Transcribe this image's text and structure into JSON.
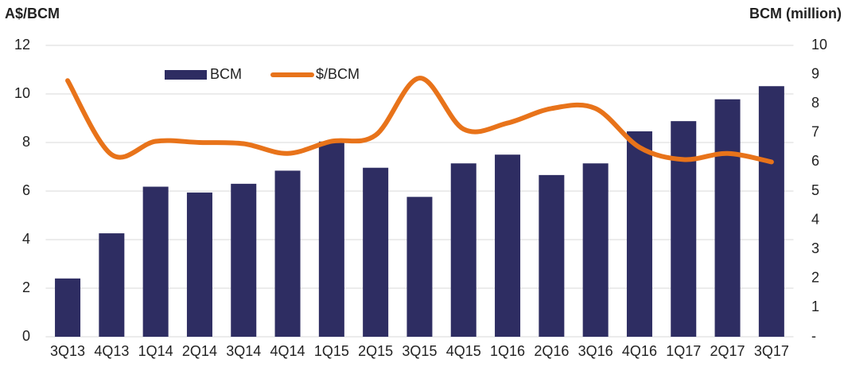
{
  "chart_data": {
    "type": "bar-line",
    "y_label": "A$/BCM",
    "y2_label": "BCM (million)",
    "categories": [
      "3Q13",
      "4Q13",
      "1Q14",
      "2Q14",
      "3Q14",
      "4Q14",
      "1Q15",
      "2Q15",
      "3Q15",
      "4Q15",
      "1Q16",
      "2Q16",
      "3Q16",
      "4Q16",
      "1Q17",
      "2Q17",
      "3Q17"
    ],
    "series": [
      {
        "name": "BCM",
        "type": "bar",
        "axis": "y2",
        "color": "#2e2d62",
        "values": [
          2.0,
          3.55,
          5.15,
          4.95,
          5.25,
          5.7,
          6.7,
          5.8,
          4.8,
          5.95,
          6.25,
          5.55,
          5.95,
          7.05,
          7.4,
          8.15,
          8.6
        ]
      },
      {
        "name": "$/BCM",
        "type": "line",
        "axis": "y",
        "color": "#e8731a",
        "values": [
          10.55,
          7.5,
          8.05,
          8.0,
          7.95,
          7.55,
          8.05,
          8.3,
          10.65,
          8.55,
          8.8,
          9.4,
          9.4,
          7.8,
          7.3,
          7.55,
          7.2
        ]
      }
    ],
    "ylim": [
      0,
      12
    ],
    "yticks": [
      0,
      2,
      4,
      6,
      8,
      10,
      12
    ],
    "y2lim": [
      0,
      10
    ],
    "y2ticks": [
      {
        "value": 0,
        "label": "-"
      },
      1,
      2,
      3,
      4,
      5,
      6,
      7,
      8,
      9,
      10
    ],
    "grid": true,
    "legend": "top"
  }
}
